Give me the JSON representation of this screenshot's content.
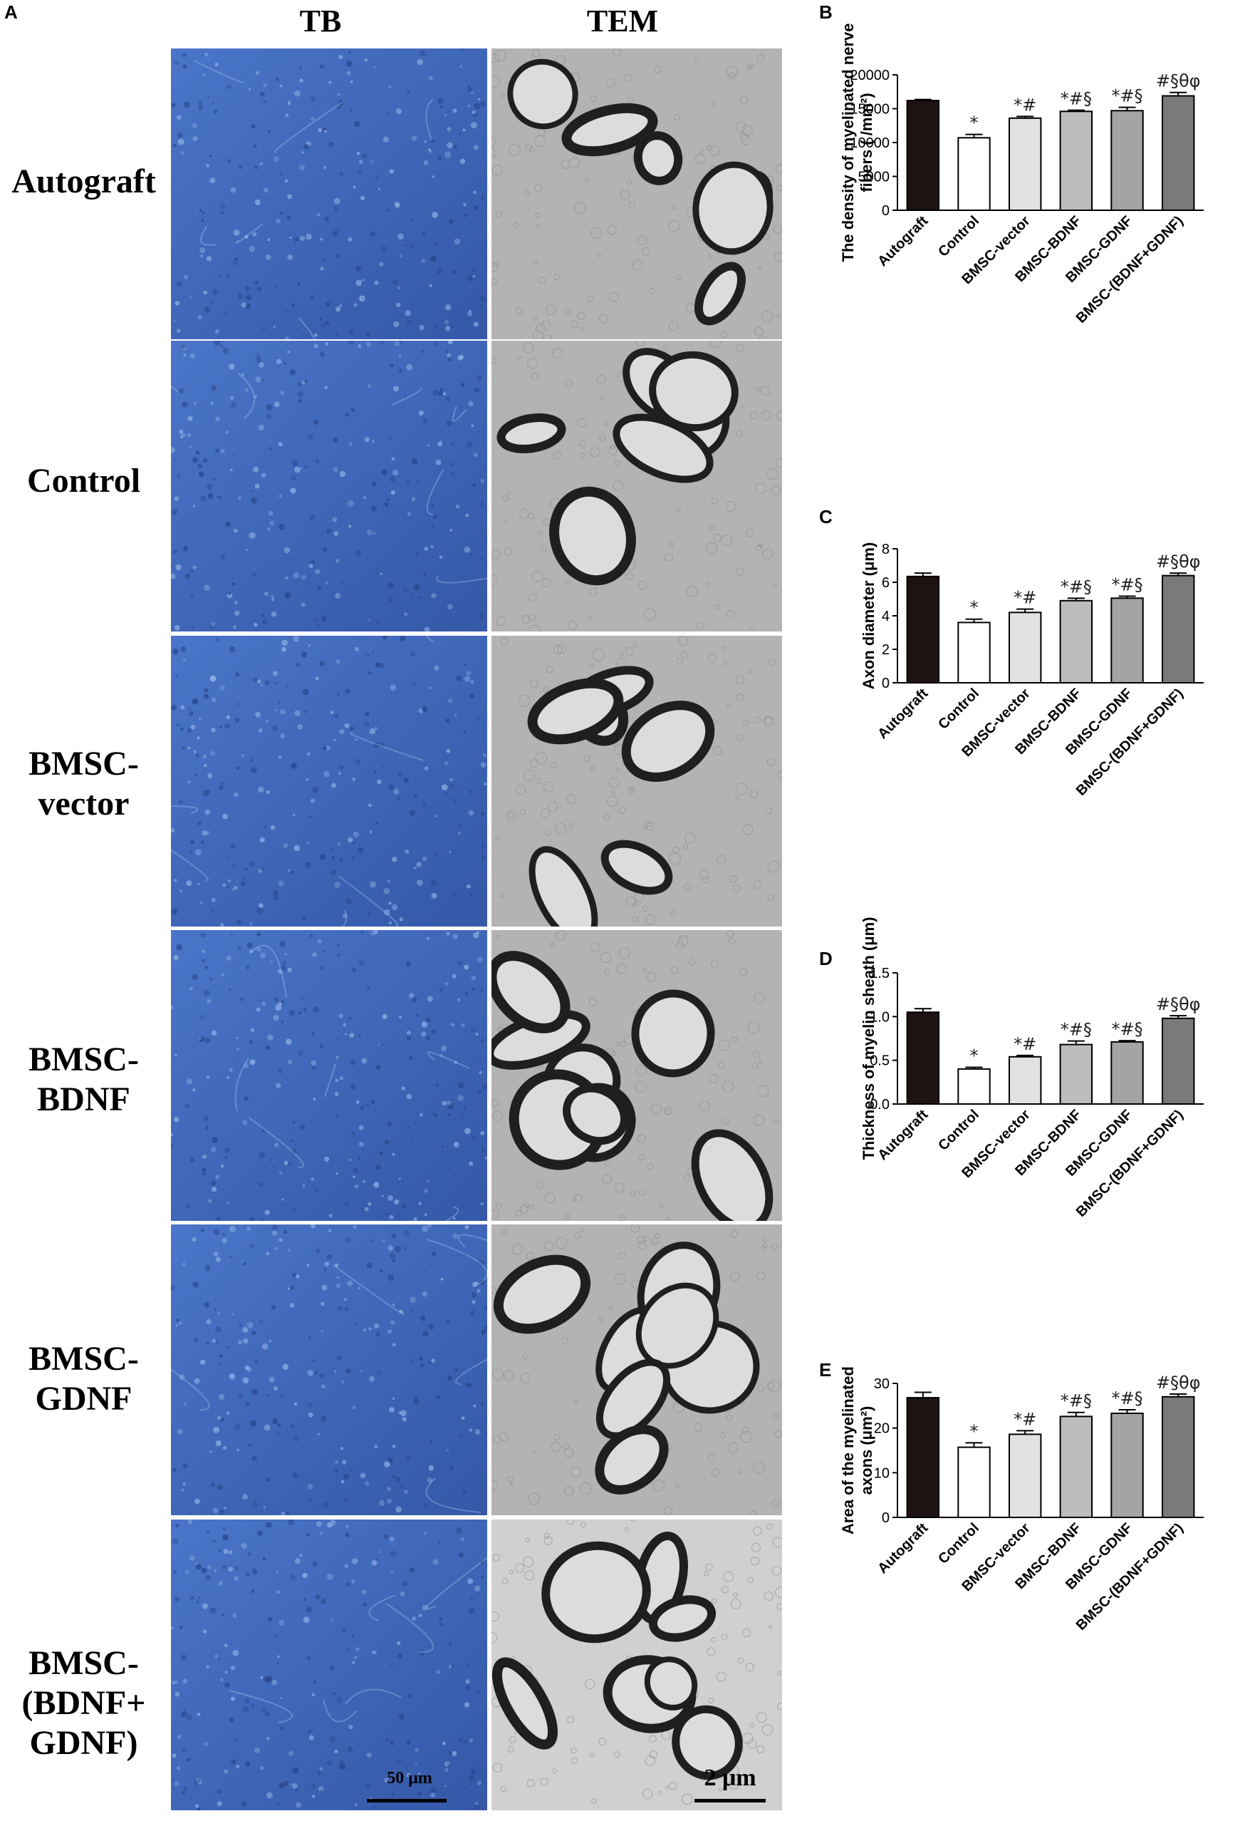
{
  "panel_letters": {
    "a": "A",
    "b": "B",
    "c": "C",
    "d": "D",
    "e": "E"
  },
  "columns": {
    "tb": "TB",
    "tem": "TEM"
  },
  "rows": [
    {
      "lines": [
        "Autograft"
      ]
    },
    {
      "lines": [
        "Control"
      ]
    },
    {
      "lines": [
        "BMSC-",
        "vector"
      ]
    },
    {
      "lines": [
        "BMSC-",
        "BDNF"
      ]
    },
    {
      "lines": [
        "BMSC-",
        "GDNF"
      ]
    },
    {
      "lines": [
        "BMSC-",
        "(BDNF+",
        "GDNF)"
      ]
    }
  ],
  "scale_bars": {
    "tb": "50 μm",
    "tem": "2 μm"
  },
  "colors": {
    "tb_tissue": "#3f66b8",
    "tem_background": "#b9b9b9",
    "myelin": "#202020",
    "bars": [
      "#1e1212",
      "#ffffff",
      "#e2e2e2",
      "#bdbdbd",
      "#a4a4a4",
      "#7a7a7a"
    ]
  },
  "chart_data": [
    {
      "type": "bar",
      "panel": "B",
      "categories": [
        "Autograft",
        "Control",
        "BMSC-vector",
        "BMSC-BDNF",
        "BMSC-GDNF",
        "BMSC-(BDNF+GDNF)"
      ],
      "values": [
        16200,
        10700,
        13600,
        14600,
        14700,
        16900
      ],
      "errors": [
        150,
        500,
        250,
        180,
        500,
        500
      ],
      "annotations": [
        "",
        "*",
        "*#",
        "*#§",
        "*#§",
        "#§θφ"
      ],
      "ylabel_lines": [
        "The density of myelinated nerve",
        "fibers ( /mm²)"
      ],
      "ylim": [
        0,
        20000
      ],
      "yticks": [
        "0",
        "5000",
        "10000",
        "15000",
        "20000"
      ]
    },
    {
      "type": "bar",
      "panel": "C",
      "categories": [
        "Autograft",
        "Control",
        "BMSC-vector",
        "BMSC-BDNF",
        "BMSC-GDNF",
        "BMSC-(BDNF+GDNF)"
      ],
      "values": [
        6.35,
        3.6,
        4.2,
        4.9,
        5.05,
        6.4
      ],
      "errors": [
        0.2,
        0.2,
        0.2,
        0.15,
        0.12,
        0.15
      ],
      "annotations": [
        "",
        "*",
        "*#",
        "*#§",
        "*#§",
        "#§θφ"
      ],
      "ylabel_lines": [
        "Axon diameter (μm)"
      ],
      "ylim": [
        0,
        8
      ],
      "yticks": [
        "0",
        "2",
        "4",
        "6",
        "8"
      ]
    },
    {
      "type": "bar",
      "panel": "D",
      "categories": [
        "Autograft",
        "Control",
        "BMSC-vector",
        "BMSC-BDNF",
        "BMSC-GDNF",
        "BMSC-(BDNF+GDNF)"
      ],
      "values": [
        1.05,
        0.4,
        0.54,
        0.68,
        0.71,
        0.98
      ],
      "errors": [
        0.04,
        0.02,
        0.015,
        0.04,
        0.015,
        0.03
      ],
      "annotations": [
        "",
        "*",
        "*#",
        "*#§",
        "*#§",
        "#§θφ"
      ],
      "ylabel_lines": [
        "Thickness of myelin sheath (μm)"
      ],
      "ylim": [
        0,
        1.5
      ],
      "yticks": [
        "0.0",
        "0.5",
        "1.0",
        "1.5"
      ]
    },
    {
      "type": "bar",
      "panel": "E",
      "categories": [
        "Autograft",
        "Control",
        "BMSC-vector",
        "BMSC-BDNF",
        "BMSC-GDNF",
        "BMSC-(BDNF+GDNF)"
      ],
      "values": [
        26.8,
        15.7,
        18.6,
        22.6,
        23.3,
        27.0
      ],
      "errors": [
        1.2,
        1.0,
        0.8,
        0.9,
        0.8,
        0.6
      ],
      "annotations": [
        "",
        "*",
        "*#",
        "*#§",
        "*#§",
        "#§θφ"
      ],
      "ylabel_lines": [
        "Area of the myelinated",
        "axons (μm²)"
      ],
      "ylim": [
        0,
        30
      ],
      "yticks": [
        "0",
        "10",
        "20",
        "30"
      ]
    }
  ]
}
